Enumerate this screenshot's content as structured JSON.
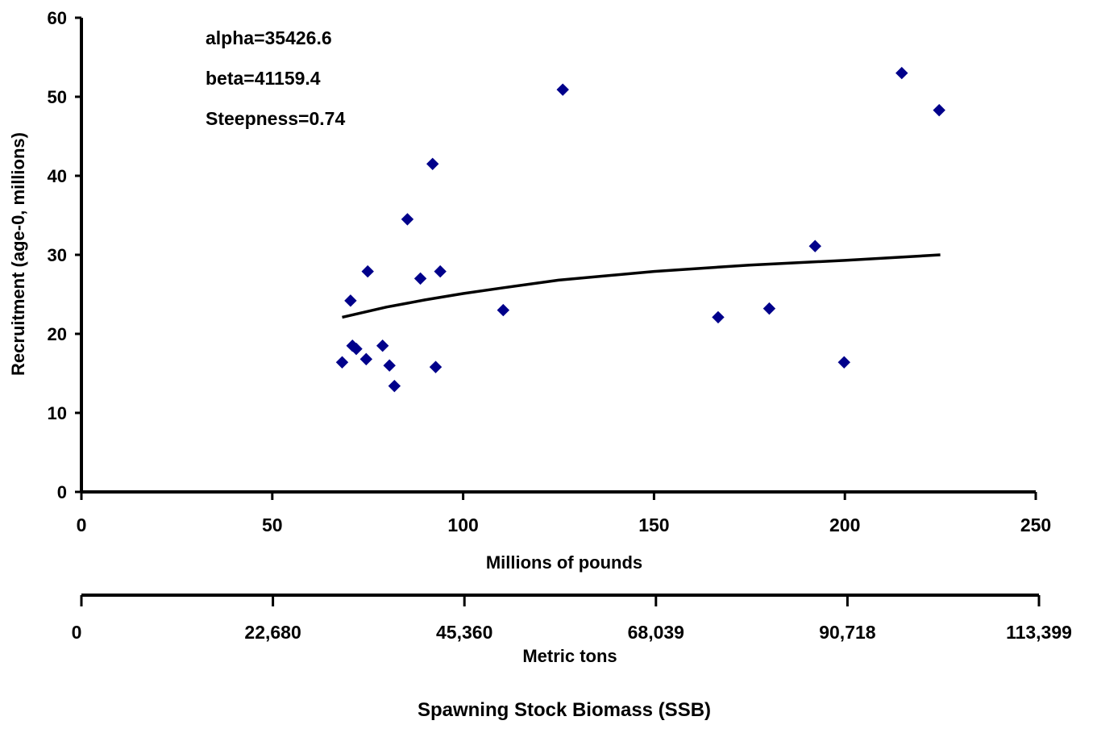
{
  "chart_data": {
    "type": "scatter",
    "title": "",
    "ylabel": "Recruitment (age-0, millions)",
    "xlabel": "Millions of pounds",
    "x2label": "Metric tons",
    "footer_label": "Spawning Stock Biomass (SSB)",
    "xlim": [
      0,
      250
    ],
    "ylim": [
      0,
      60
    ],
    "x_ticks": [
      0,
      50,
      100,
      150,
      200,
      250
    ],
    "y_ticks": [
      0,
      10,
      20,
      30,
      40,
      50,
      60
    ],
    "x_tick_labels": [
      "0",
      "50",
      "100",
      "150",
      "200",
      "250"
    ],
    "y_tick_labels": [
      "0",
      "10",
      "20",
      "30",
      "40",
      "50",
      "60"
    ],
    "x2_ticks": [
      0,
      50,
      100,
      150,
      200,
      250
    ],
    "x2_tick_labels": [
      "0",
      "22,680",
      "45,360",
      "68,039",
      "90,718",
      "113,399"
    ],
    "grid": false,
    "annotations": [
      "alpha=35426.6",
      "beta=41159.4",
      "Steepness=0.74"
    ],
    "marker_color": "#00008B",
    "line_color": "#000000",
    "series": [
      {
        "type": "scatter",
        "points": [
          [
            68.3,
            16.4
          ],
          [
            70.5,
            24.2
          ],
          [
            71.0,
            18.5
          ],
          [
            72.0,
            18.1
          ],
          [
            74.6,
            16.8
          ],
          [
            75.0,
            27.9
          ],
          [
            78.9,
            18.5
          ],
          [
            80.7,
            16.0
          ],
          [
            82.0,
            13.4
          ],
          [
            85.4,
            34.5
          ],
          [
            88.8,
            27.0
          ],
          [
            92.0,
            41.5
          ],
          [
            92.8,
            15.8
          ],
          [
            94.0,
            27.9
          ],
          [
            110.5,
            23.0
          ],
          [
            126.1,
            50.9
          ],
          [
            166.8,
            22.1
          ],
          [
            180.2,
            23.2
          ],
          [
            192.2,
            31.1
          ],
          [
            199.8,
            16.4
          ],
          [
            214.9,
            53.0
          ],
          [
            224.7,
            48.3
          ]
        ]
      },
      {
        "type": "line",
        "points": [
          [
            68.3,
            22.1
          ],
          [
            80,
            23.4
          ],
          [
            90,
            24.3
          ],
          [
            100,
            25.1
          ],
          [
            110,
            25.8
          ],
          [
            125,
            26.8
          ],
          [
            150,
            27.9
          ],
          [
            175,
            28.7
          ],
          [
            200,
            29.3
          ],
          [
            225,
            30.0
          ]
        ]
      }
    ]
  }
}
